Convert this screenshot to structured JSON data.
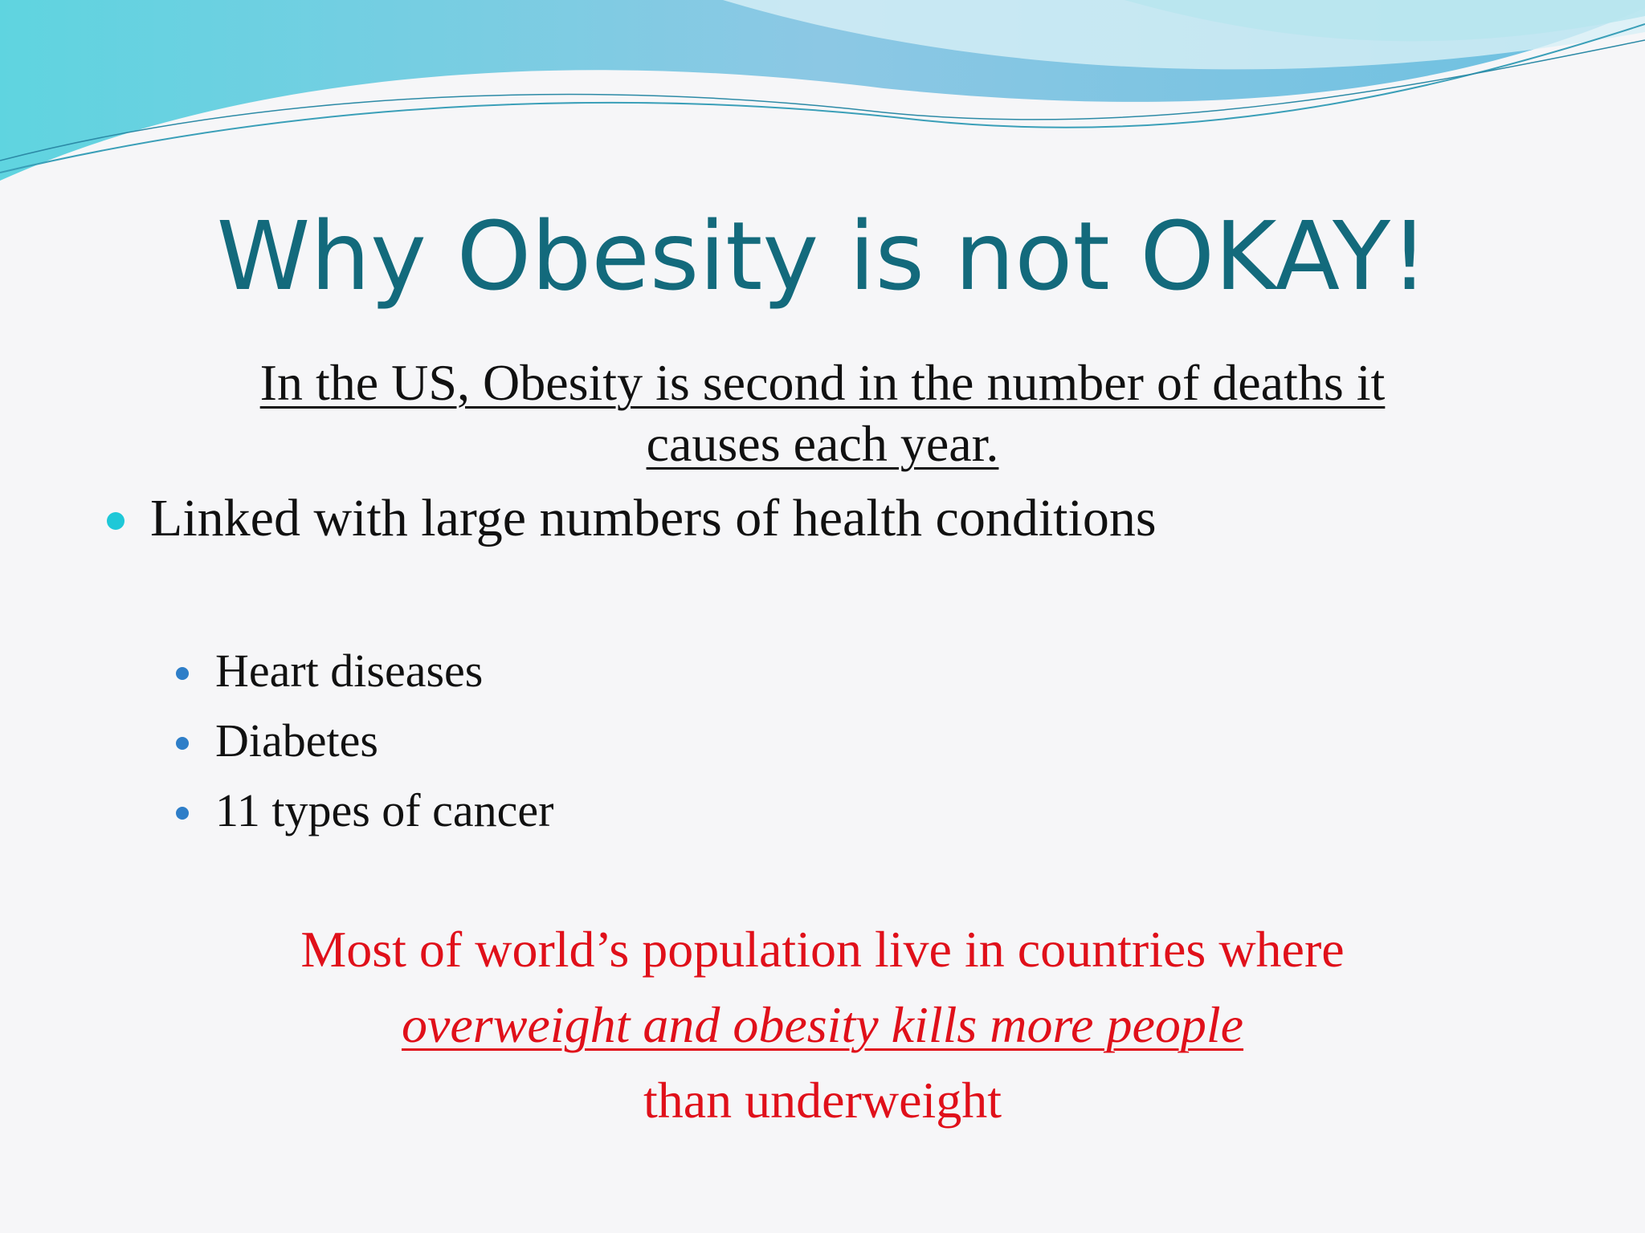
{
  "title": "Why Obesity is not OKAY!",
  "subtitle_lines": [
    "In the US, Obesity is second in the number of deaths it",
    "causes each year."
  ],
  "bullet": "Linked with large numbers of health conditions",
  "sub_bullets": [
    "Heart diseases",
    "Diabetes",
    "11 types of cancer"
  ],
  "note_lines": [
    "Most of world’s population live in countries where",
    "overweight and obesity kills more people",
    "than underweight"
  ]
}
